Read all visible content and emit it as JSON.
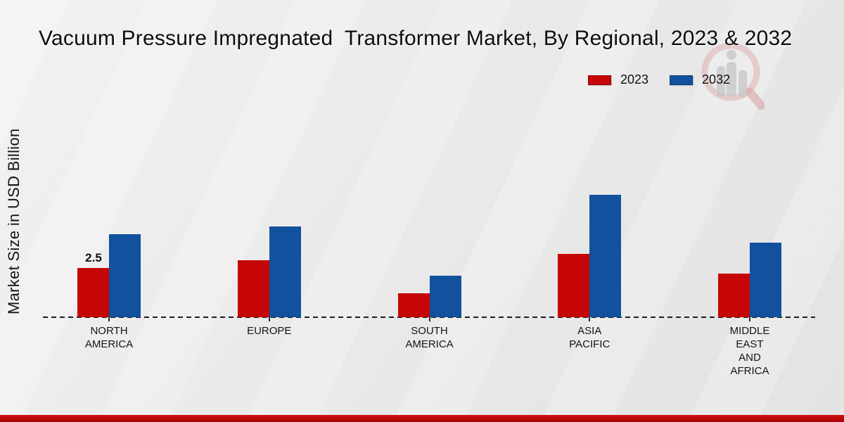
{
  "title": "Vacuum Pressure Impregnated  Transformer Market, By Regional, 2023 & 2032",
  "y_axis_label": "Market Size in USD Billion",
  "legend": {
    "items": [
      {
        "label": "2023",
        "color": "#c60606"
      },
      {
        "label": "2032",
        "color": "#11519d"
      }
    ]
  },
  "watermark_icon": "magnifier-bar-chart-logo",
  "colors": {
    "series_2023": "#c60606",
    "series_2032": "#11519d",
    "footer_accent": "#b30505",
    "baseline": "#1c1c1c",
    "background_light": "#f2f2f2",
    "background_dark": "#e3e3e3"
  },
  "chart_data": {
    "type": "bar",
    "categories": [
      "NORTH AMERICA",
      "EUROPE",
      "SOUTH AMERICA",
      "ASIA PACIFIC",
      "MIDDLE EAST AND AFRICA"
    ],
    "series": [
      {
        "name": "2023",
        "color": "#c60606",
        "values": [
          2.5,
          2.9,
          1.2,
          3.2,
          2.2
        ]
      },
      {
        "name": "2032",
        "color": "#11519d",
        "values": [
          4.2,
          4.6,
          2.1,
          6.2,
          3.8
        ]
      }
    ],
    "data_labels": [
      {
        "series_index": 0,
        "category_index": 0,
        "text": "2.5"
      }
    ],
    "title": "Vacuum Pressure Impregnated  Transformer Market, By Regional, 2023 & 2032",
    "xlabel": "",
    "ylabel": "Market Size in USD Billion",
    "ylim": [
      0,
      7
    ],
    "value_axis_visible": false,
    "baseline_style": "dashed",
    "grid": false,
    "legend_position": "top-right"
  }
}
